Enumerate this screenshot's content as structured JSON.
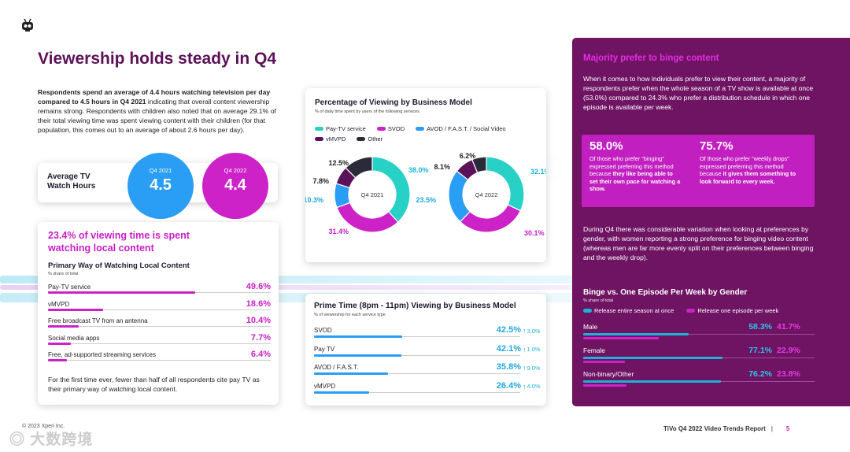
{
  "colors": {
    "magenta": "#cc22c8",
    "cyan": "#1ab3d8",
    "blue": "#2a9df4",
    "purple": "#5b1259",
    "dark": "#2a2a3a",
    "panel": "#6e1463",
    "teal": "#27d1c6"
  },
  "header": {
    "logo_icon": "tivo-robot-icon",
    "title": "Viewership holds steady in Q4"
  },
  "intro": {
    "bold": "Respondents spend an average of 4.4 hours watching television per day compared to 4.5 hours in Q4 2021",
    "rest": " indicating that overall content viewership remains strong. Respondents with children also noted that on average 29.1% of their total viewing time was spent viewing content with their children (for that population, this comes out to an average of about 2.6 hours per day)."
  },
  "avg_tv": {
    "label": "Average TV Watch Hours",
    "q4_2021_label": "Q4 2021",
    "q4_2021_value": "4.5",
    "q4_2022_label": "Q4 2022",
    "q4_2022_value": "4.4"
  },
  "local": {
    "headline": "23.4% of viewing time is spent watching local content",
    "title": "Primary Way of Watching Local Content",
    "subtitle": "% share of total",
    "rows": [
      {
        "label": "Pay-TV service",
        "value": "49.6%",
        "pct": 49.6
      },
      {
        "label": "vMVPD",
        "value": "18.6%",
        "pct": 18.6
      },
      {
        "label": "Free broadcast TV from an antenna",
        "value": "10.4%",
        "pct": 10.4
      },
      {
        "label": "Social media apps",
        "value": "7.7%",
        "pct": 7.7
      },
      {
        "label": "Free, ad-supported streaming services",
        "value": "6.4%",
        "pct": 6.4
      }
    ],
    "footer": "For the first time ever, fewer than half of all respondents cite pay TV as their primary way of watching local content."
  },
  "donut": {
    "title": "Percentage of Viewing by Business Model",
    "subtitle": "% of daily time spent by users of the following services",
    "legend": [
      {
        "name": "Pay-TV service",
        "color": "#27d1c6"
      },
      {
        "name": "SVOD",
        "color": "#cc22c8"
      },
      {
        "name": "AVOD / F.A.S.T. / Social Video",
        "color": "#2a9df4"
      },
      {
        "name": "vMVPD",
        "color": "#5b1259"
      },
      {
        "name": "Other",
        "color": "#2a2a3a"
      }
    ]
  },
  "chart_data": [
    {
      "type": "pie",
      "title": "Q4 2021",
      "categories": [
        "Pay-TV service",
        "SVOD",
        "AVOD / F.A.S.T. / Social Video",
        "vMVPD",
        "Other"
      ],
      "values": [
        38.0,
        31.4,
        10.3,
        7.8,
        12.5
      ],
      "labels": [
        "38.0%",
        "31.4%",
        "10.3%",
        "7.8%",
        "12.5%"
      ]
    },
    {
      "type": "pie",
      "title": "Q4 2022",
      "categories": [
        "Pay-TV service",
        "SVOD",
        "AVOD / F.A.S.T. / Social Video",
        "vMVPD",
        "Other"
      ],
      "values": [
        32.1,
        30.1,
        23.5,
        8.1,
        6.2
      ],
      "labels": [
        "32.1%",
        "30.1%",
        "23.5%",
        "8.1%",
        "6.2%"
      ]
    },
    {
      "type": "bar",
      "title": "Prime Time (8pm - 11pm) Viewing by Business Model",
      "categories": [
        "SVOD",
        "Pay TV",
        "AVOD / F.A.S.T.",
        "vMVPD"
      ],
      "values": [
        42.5,
        42.1,
        35.8,
        26.4
      ],
      "change": [
        3.0,
        1.0,
        9.0,
        4.0
      ]
    },
    {
      "type": "bar",
      "title": "Binge vs. One Episode Per Week by Gender",
      "categories": [
        "Male",
        "Female",
        "Non-binary/Other"
      ],
      "series": [
        {
          "name": "Release entire season at once",
          "values": [
            58.3,
            77.1,
            76.2
          ]
        },
        {
          "name": "Release one episode per week",
          "values": [
            41.7,
            22.9,
            23.8
          ]
        }
      ]
    }
  ],
  "prime": {
    "title": "Prime Time (8pm - 11pm) Viewing by Business Model",
    "subtitle": "% of viewership for each service type",
    "rows": [
      {
        "label": "SVOD",
        "value": "42.5%",
        "change": "3.0%",
        "pct": 42.5
      },
      {
        "label": "Pay TV",
        "value": "42.1%",
        "change": "1.0%",
        "pct": 42.1
      },
      {
        "label": "AVOD / F.A.S.T.",
        "value": "35.8%",
        "change": "9.0%",
        "pct": 35.8
      },
      {
        "label": "vMVPD",
        "value": "26.4%",
        "change": "4.0%",
        "pct": 26.4
      }
    ]
  },
  "panel": {
    "headline": "Majority prefer to binge content",
    "para1": "When it comes to how individuals prefer to view their content, a majority of respondents prefer when the whole season of a TV show is available at once (53.0%) compared to 24.3% who prefer a distribution schedule in which one episode is available per week.",
    "stat1_value": "58.0%",
    "stat1_pre": "Of those who prefer \"binging\" expressed preferring this method because ",
    "stat1_bold": "they like being able to set their own pace for watching a show.",
    "stat2_value": "75.7%",
    "stat2_pre": "Of those who prefer \"weekly drops\" expressed preferring this method because ",
    "stat2_bold": "it gives them something to look forward to every week.",
    "para2": "During Q4 there was considerable variation when looking at preferences by gender, with women reporting a strong preference for binging video content (whereas men are far more evenly split on their preferences between binging and the weekly drop).",
    "binge_title": "Binge vs. One Episode Per Week by Gender",
    "binge_sub": "% share of total",
    "legend_a": "Release entire season at once",
    "legend_b": "Release one episode per week",
    "rows": [
      {
        "label": "Male",
        "a": "58.3%",
        "b": "41.7%",
        "pa": 58.3,
        "pb": 41.7
      },
      {
        "label": "Female",
        "a": "77.1%",
        "b": "22.9%",
        "pa": 77.1,
        "pb": 22.9
      },
      {
        "label": "Non-binary/Other",
        "a": "76.2%",
        "b": "23.8%",
        "pa": 76.2,
        "pb": 23.8
      }
    ]
  },
  "footer": {
    "copyright": "© 2023 Xperi Inc.",
    "report": "TiVo Q4 2022 Video Trends Report",
    "divider": "|",
    "page": "5",
    "watermark": "大数跨境"
  }
}
